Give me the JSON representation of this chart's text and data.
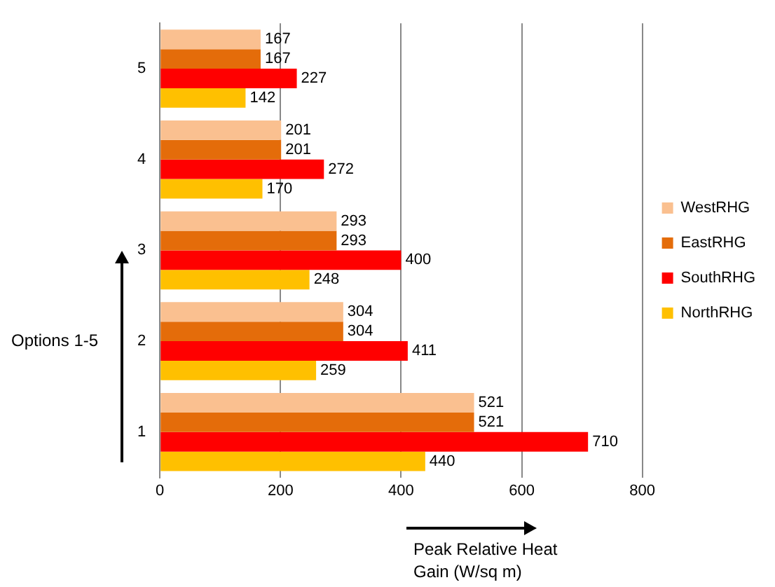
{
  "chart_data": {
    "type": "bar",
    "orientation": "horizontal",
    "xlabel": "Peak Relative Heat Gain (W/sq m)",
    "ylabel": "Options 1-5",
    "categories": [
      "5",
      "4",
      "3",
      "2",
      "1"
    ],
    "series": [
      {
        "name": "WestRHG",
        "color": "#fac090",
        "values": [
          167,
          201,
          293,
          304,
          521
        ]
      },
      {
        "name": "EastRHG",
        "color": "#e46c0a",
        "values": [
          167,
          201,
          293,
          304,
          521
        ]
      },
      {
        "name": "SouthRHG",
        "color": "#ff0000",
        "values": [
          227,
          272,
          400,
          411,
          710
        ]
      },
      {
        "name": "NorthRHG",
        "color": "#ffc000",
        "values": [
          142,
          170,
          248,
          259,
          440
        ]
      }
    ],
    "xlim": [
      0,
      800
    ],
    "xticks": [
      0,
      200,
      400,
      600,
      800
    ],
    "grid": "x",
    "legend": "right",
    "data_labels": true
  }
}
